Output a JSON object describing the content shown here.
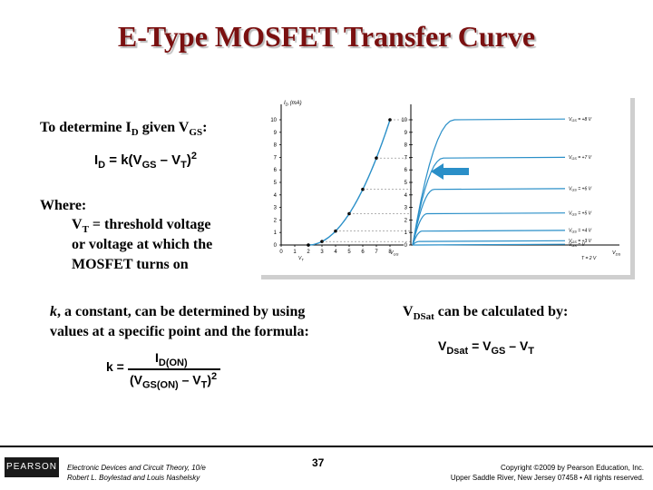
{
  "slide": {
    "title": "E-Type MOSFET Transfer Curve",
    "determine_text": "To determine I",
    "determine_sub1": "D",
    "determine_mid": " given V",
    "determine_sub2": "GS",
    "determine_end": ":",
    "formula_id": {
      "lhs": "I",
      "lhs_sub": "D",
      "mid": " = k(V",
      "mid_sub": "GS",
      "minus": " – V",
      "vt_sub": "T",
      "close": ")",
      "exp": "2"
    },
    "where_label": "Where:",
    "vt_line_prefix": "V",
    "vt_line_sub": "T",
    "vt_line_text": " = threshold voltage",
    "vt_line2": "or voltage at which the",
    "vt_line3": "MOSFET turns on",
    "k_line1": ", a constant, can be determined by using",
    "k_italic": "k",
    "k_line2": "values at a specific point and the formula:",
    "k_formula": {
      "lhs": "k =",
      "num": "I",
      "num_sub": "D(ON)",
      "den_open": "(V",
      "den_sub": "GS(ON)",
      "den_mid": " – V",
      "den_sub2": "T",
      "den_close": ")",
      "den_exp": "2"
    },
    "vdsat_label": "V",
    "vdsat_sub": "DSat",
    "vdsat_text": "  can be calculated by:",
    "vdsat_formula": {
      "lhs": "V",
      "lhs_sub": "Dsat",
      "mid": " = V",
      "mid_sub": "GS",
      "minus": " – V",
      "end_sub": "T"
    }
  },
  "graph": {
    "y_axis_label": "I",
    "y_axis_label_sub": "D",
    "y_axis_unit": " (mA)",
    "y_ticks": [
      "10",
      "9",
      "8",
      "7",
      "6",
      "5",
      "4",
      "3",
      "2",
      "1",
      "0"
    ],
    "x_ticks": [
      "0",
      "1",
      "2",
      "3",
      "4",
      "5",
      "6",
      "7",
      "8"
    ],
    "x_axis_label": "V",
    "x_axis_label_sub": "GS",
    "vt_marker": "V",
    "vt_marker_sub": "T",
    "right_x_label": "V",
    "right_x_label_sub": "DS",
    "curve_labels": [
      {
        "text": "V",
        "sub": "GS",
        "rest": " = +8 V"
      },
      {
        "text": "V",
        "sub": "GS",
        "rest": " = +7 V"
      },
      {
        "text": "V",
        "sub": "GS",
        "rest": " = +6 V"
      },
      {
        "text": "V",
        "sub": "GS",
        "rest": " = +5 V"
      },
      {
        "text": "V",
        "sub": "GS",
        "rest": " = +4 V"
      },
      {
        "text": "V",
        "sub": "GS",
        "rest": " = +3 V"
      },
      {
        "text": "V",
        "sub": "GS",
        "rest": " = V"
      },
      {
        "text": "T",
        "sub": "",
        "rest": " = 2 V"
      }
    ],
    "colors": {
      "curve": "#2a8fc8",
      "arrow": "#2a8fc8",
      "axis": "#000000"
    }
  },
  "footer": {
    "logo": "PEARSON",
    "book_line1": "Electronic Devices and Circuit Theory, 10/e",
    "book_line2": "Robert L. Boylestad and Louis Nashelsky",
    "page_number": "37",
    "copyright_line1": "Copyright ©2009 by Pearson Education, Inc.",
    "copyright_line2": "Upper Saddle River, New Jersey 07458 • All rights reserved."
  }
}
